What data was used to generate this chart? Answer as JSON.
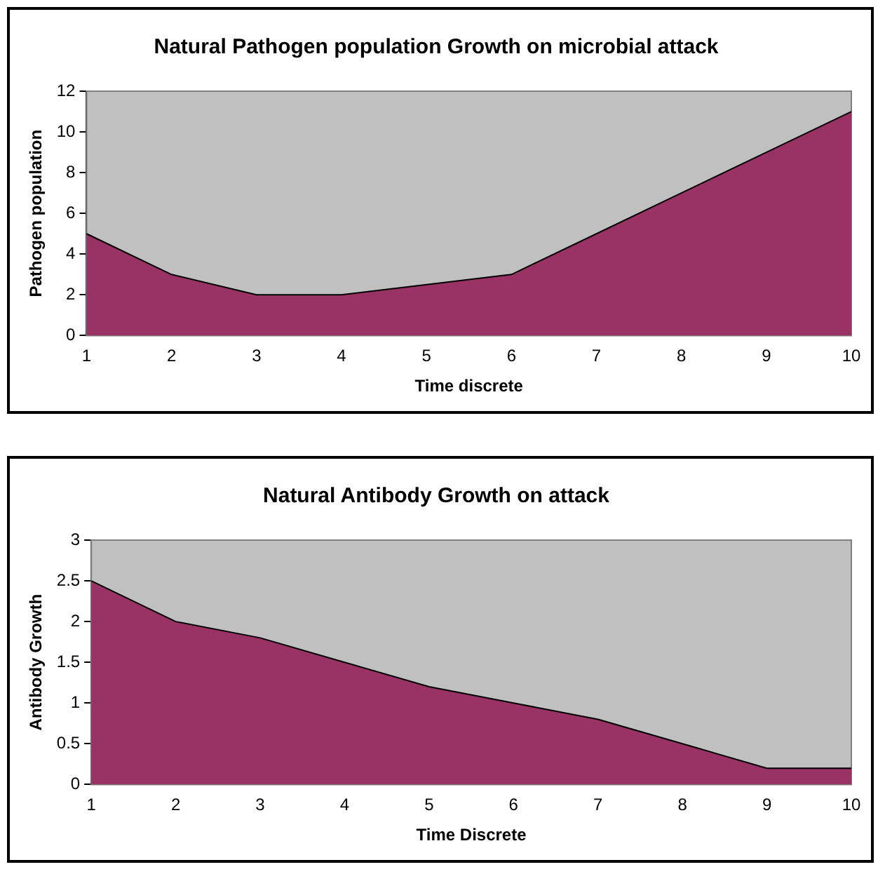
{
  "chart_data": [
    {
      "type": "area",
      "title": "Natural Pathogen population Growth on microbial attack",
      "xlabel": "Time discrete",
      "ylabel": "Pathogen population",
      "categories": [
        "1",
        "2",
        "3",
        "4",
        "5",
        "6",
        "7",
        "8",
        "9",
        "10"
      ],
      "series": [
        {
          "color": "#993366",
          "values": [
            5,
            3,
            2,
            2,
            2.5,
            3,
            5,
            7,
            9,
            11
          ]
        }
      ],
      "ylim": [
        0,
        12
      ],
      "yticks": [
        0,
        2,
        4,
        6,
        8,
        10,
        12
      ],
      "grid": false,
      "legend": false
    },
    {
      "type": "area",
      "title": "Natural Antibody Growth on attack",
      "xlabel": "Time Discrete",
      "ylabel": "Antibody Growth",
      "categories": [
        "1",
        "2",
        "3",
        "4",
        "5",
        "6",
        "7",
        "8",
        "9",
        "10"
      ],
      "series": [
        {
          "color": "#993366",
          "values": [
            2.5,
            2,
            1.8,
            1.5,
            1.2,
            1,
            0.8,
            0.5,
            0.2,
            0.2
          ]
        }
      ],
      "ylim": [
        0,
        3
      ],
      "yticks": [
        0,
        0.5,
        1,
        1.5,
        2,
        2.5,
        3
      ],
      "grid": false,
      "legend": false
    }
  ]
}
